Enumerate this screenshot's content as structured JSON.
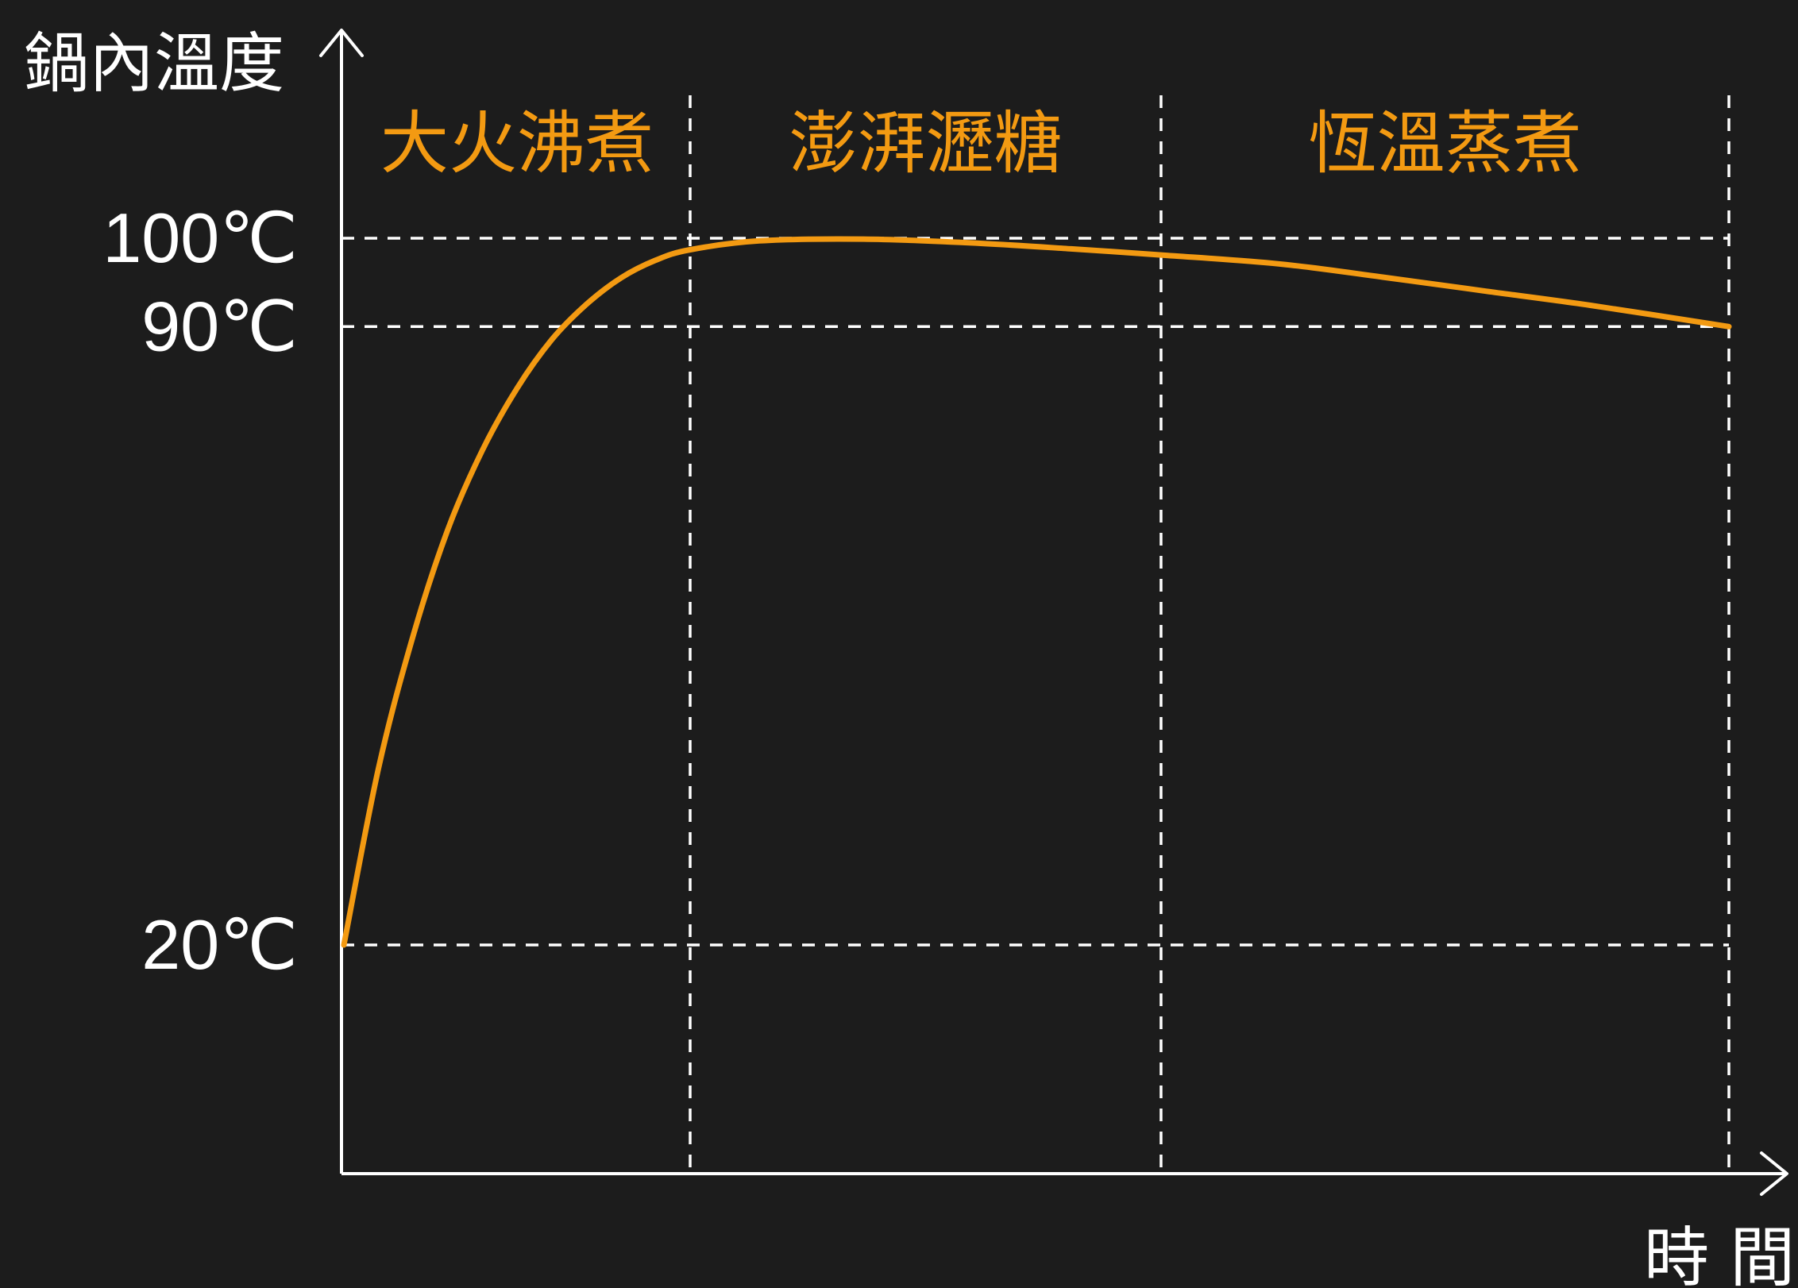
{
  "chart_data": {
    "type": "line",
    "ylabel": "鍋內溫度",
    "xlabel": "時 間",
    "y_ticks": [
      {
        "value": 100,
        "label": "100℃"
      },
      {
        "value": 90,
        "label": "90℃"
      },
      {
        "value": 20,
        "label": "20℃"
      }
    ],
    "ylim": [
      3,
      111
    ],
    "xlim": [
      0,
      4.3
    ],
    "phases": [
      {
        "label": "大火沸煮",
        "start": 0,
        "end": 1
      },
      {
        "label": "澎湃瀝糖",
        "start": 1,
        "end": 2.36
      },
      {
        "label": "恆溫蒸煮",
        "start": 2.36,
        "end": 4
      }
    ],
    "grid": "dashed guides at tick values and phase boundaries",
    "series": [
      {
        "color": "#f39a12",
        "x": [
          0,
          0.1,
          0.2,
          0.3,
          0.4,
          0.5,
          0.6,
          0.7,
          0.8,
          0.9,
          1.0,
          1.2,
          1.5,
          1.8,
          2.1,
          2.36,
          2.7,
          3.0,
          3.3,
          3.6,
          4.0
        ],
        "y": [
          20,
          40,
          55,
          67,
          76,
          83,
          88.5,
          92.5,
          95.5,
          97.5,
          98.7,
          99.7,
          99.9,
          99.5,
          98.8,
          98.1,
          97.1,
          95.6,
          94.0,
          92.4,
          90
        ]
      }
    ]
  }
}
